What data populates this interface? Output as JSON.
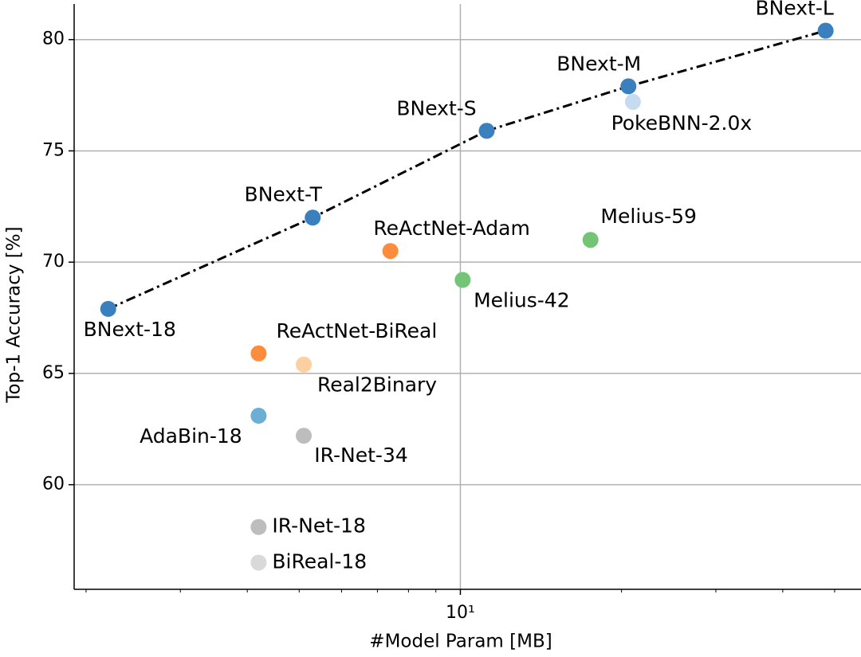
{
  "chart_data": {
    "type": "scatter",
    "xlabel": "#Model Param [MB]",
    "ylabel": "Top-1 Accuracy [%]",
    "xscale": "log",
    "xlim": [
      1.9,
      56
    ],
    "ylim": [
      55.3,
      81.6
    ],
    "xticks": [
      {
        "value": 10,
        "label": "10¹"
      }
    ],
    "xminorticks": [
      2,
      3,
      4,
      5,
      6,
      7,
      8,
      9,
      20,
      30,
      40,
      50
    ],
    "yticks": [
      60,
      65,
      70,
      75,
      80
    ],
    "grid": true,
    "line_points": {
      "line_style": "dash-dot",
      "line_color": "#000000",
      "color": "#3a80bf",
      "labels": [
        "BNext-18",
        "BNext-T",
        "BNext-S",
        "BNext-M",
        "BNext-L"
      ],
      "x": [
        2.2,
        5.3,
        11.2,
        20.6,
        48.1
      ],
      "y": [
        67.9,
        72.0,
        75.9,
        77.9,
        80.4
      ]
    },
    "points": [
      {
        "label": "PokeBNN-2.0x",
        "x": 21.0,
        "y": 77.2,
        "color": "#c6dbef"
      },
      {
        "label": "ReActNet-Adam",
        "x": 7.4,
        "y": 70.5,
        "color": "#fd8d3c"
      },
      {
        "label": "Melius-42",
        "x": 10.1,
        "y": 69.2,
        "color": "#74c476"
      },
      {
        "label": "Melius-59",
        "x": 17.5,
        "y": 71.0,
        "color": "#74c476"
      },
      {
        "label": "ReActNet-BiReal",
        "x": 4.2,
        "y": 65.9,
        "color": "#fd8d3c"
      },
      {
        "label": "Real2Binary",
        "x": 5.1,
        "y": 65.4,
        "color": "#fdd0a2"
      },
      {
        "label": "AdaBin-18",
        "x": 4.2,
        "y": 63.1,
        "color": "#6baed6"
      },
      {
        "label": "IR-Net-34",
        "x": 5.1,
        "y": 62.2,
        "color": "#bdbdbd"
      },
      {
        "label": "IR-Net-18",
        "x": 4.2,
        "y": 58.1,
        "color": "#bdbdbd"
      },
      {
        "label": "BiReal-18",
        "x": 4.2,
        "y": 56.5,
        "color": "#d9d9d9"
      }
    ]
  }
}
